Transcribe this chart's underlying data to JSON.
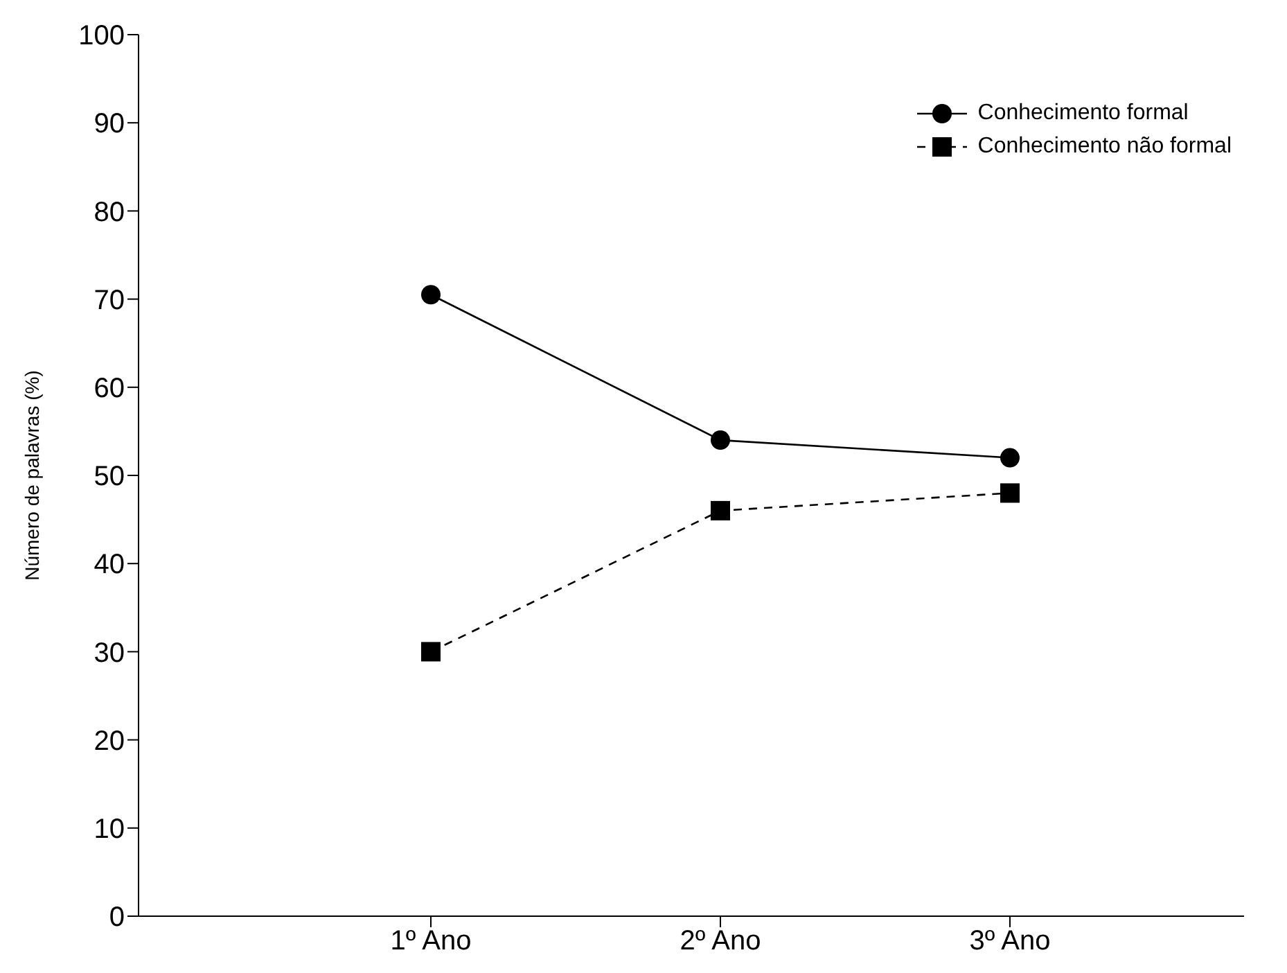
{
  "chart_data": {
    "type": "line",
    "ylabel": "Número de palavras (%)",
    "categories": [
      "1º Ano",
      "2º Ano",
      "3º Ano"
    ],
    "ylim": [
      0,
      100
    ],
    "yticks": [
      0,
      10,
      20,
      30,
      40,
      50,
      60,
      70,
      80,
      90,
      100
    ],
    "grid": false,
    "legend": "top right",
    "series": [
      {
        "name": "Conhecimento formal",
        "color": "#000000",
        "values": [
          70.5,
          54,
          52
        ],
        "marker": "circle",
        "line_style": "solid"
      },
      {
        "name": "Conhecimento não formal",
        "color": "#000000",
        "values": [
          30,
          46,
          48
        ],
        "marker": "square",
        "line_style": "dashed"
      }
    ]
  }
}
